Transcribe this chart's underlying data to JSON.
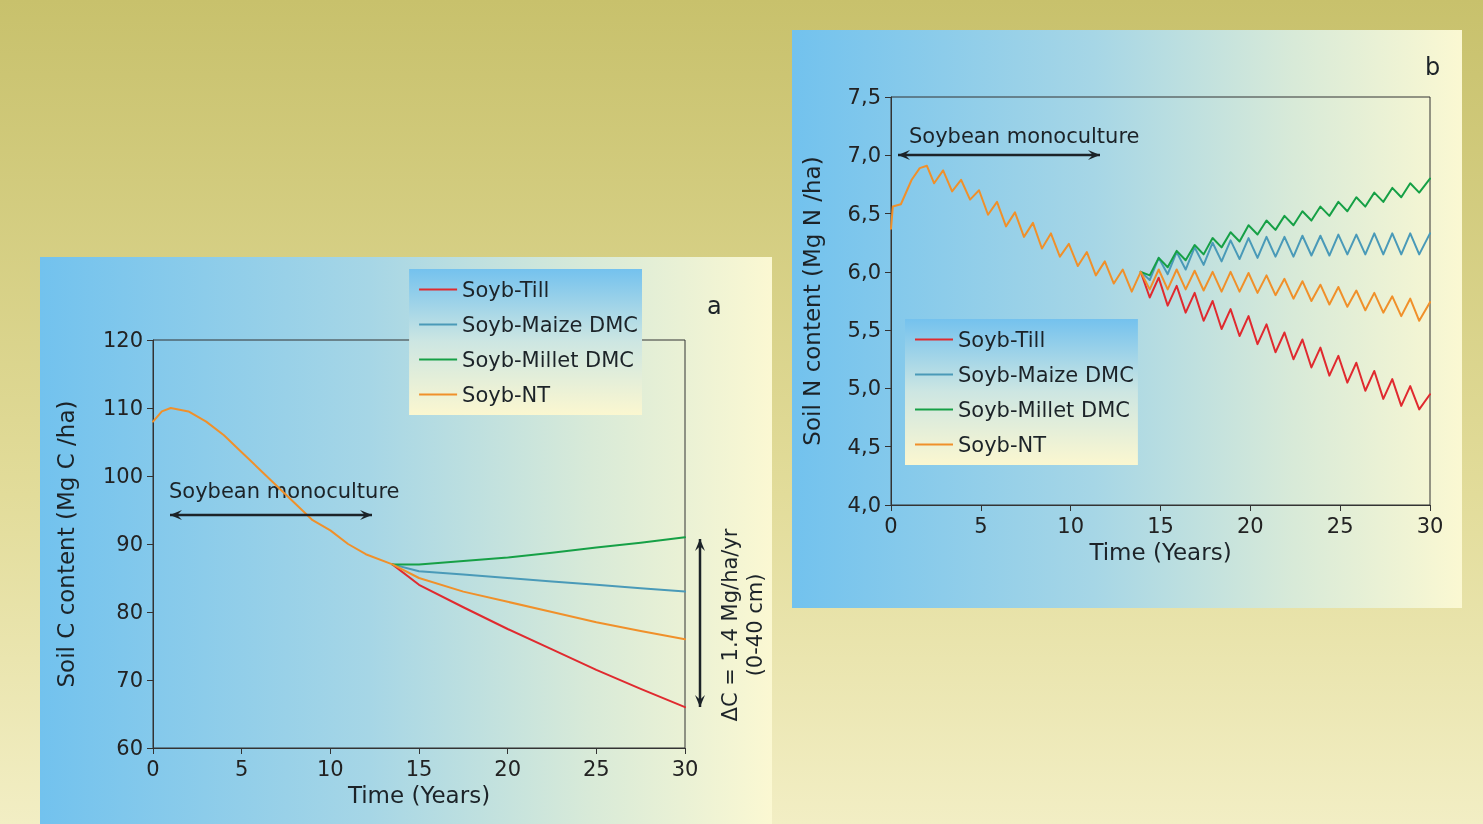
{
  "chart_data": [
    {
      "type": "line",
      "title": "a",
      "xlabel": "Time (Years)",
      "ylabel": "Soil C content (Mg C /ha)",
      "xlim": [
        0,
        30
      ],
      "xticks": [
        0,
        5,
        10,
        15,
        20,
        25,
        30
      ],
      "ylim": [
        60,
        120
      ],
      "yticks": [
        60,
        70,
        80,
        90,
        100,
        110,
        120
      ],
      "grid": false,
      "legend": "top right",
      "marker": "none",
      "line_style": "solid",
      "annotations": [
        "Soybean monoculture",
        "ΔC = 1.4 Mg/ha/yr",
        "(0-40 cm)"
      ],
      "series": [
        {
          "name": "Soyb-Till",
          "color": "#e02a2f",
          "x": [
            13.5,
            15,
            17.5,
            20,
            22.5,
            25,
            27.5,
            30
          ],
          "values": [
            87,
            84,
            80.7,
            77.5,
            74.5,
            71.5,
            68.7,
            66
          ]
        },
        {
          "name": "Soyb-Maize DMC",
          "color": "#4a9ab8",
          "x": [
            13.5,
            15,
            17.5,
            20,
            22.5,
            25,
            27.5,
            30
          ],
          "values": [
            87,
            86,
            85.5,
            85,
            84.5,
            84,
            83.5,
            83
          ]
        },
        {
          "name": "Soyb-Millet DMC",
          "color": "#16a046",
          "x": [
            13.5,
            15,
            17.5,
            20,
            22.5,
            25,
            27.5,
            30
          ],
          "values": [
            87,
            87,
            87.5,
            88,
            88.7,
            89.5,
            90.2,
            91
          ]
        },
        {
          "name": "Soyb-NT",
          "color": "#f0902a",
          "x": [
            0,
            0.5,
            1,
            2,
            3,
            4,
            5,
            6,
            7,
            8,
            9,
            10,
            11,
            12,
            13.5,
            15,
            17.5,
            20,
            22.5,
            25,
            27.5,
            30
          ],
          "values": [
            108,
            109.5,
            110,
            109.5,
            108,
            106,
            103.5,
            101,
            98.5,
            96,
            93.5,
            92,
            90,
            88.5,
            87,
            85,
            83,
            81.5,
            80,
            78.5,
            77.2,
            76
          ]
        }
      ]
    },
    {
      "type": "line",
      "title": "b",
      "xlabel": "Time (Years)",
      "ylabel": "Soil N content (Mg N /ha)",
      "xlim": [
        0,
        30
      ],
      "xticks": [
        0,
        5,
        10,
        15,
        20,
        25,
        30
      ],
      "ylim": [
        4.0,
        7.5
      ],
      "yticks": [
        {
          "value": 4.0,
          "label": "4,0"
        },
        {
          "value": 4.5,
          "label": "4,5"
        },
        {
          "value": 5.0,
          "label": "5,0"
        },
        {
          "value": 5.5,
          "label": "5,5"
        },
        {
          "value": 6.0,
          "label": "6,0"
        },
        {
          "value": 6.5,
          "label": "6,5"
        },
        {
          "value": 7.0,
          "label": "7,0"
        },
        {
          "value": 7.5,
          "label": "7,5"
        }
      ],
      "grid": false,
      "legend": "bottom left",
      "marker": "none",
      "line_style": "solid",
      "annotations": [
        "Soybean monoculture"
      ],
      "series": [
        {
          "name": "Soyb-Till",
          "color": "#e02a2f",
          "x": [
            13.9,
            14.4,
            14.9,
            15.4,
            15.9,
            16.4,
            16.9,
            17.4,
            17.9,
            18.4,
            18.9,
            19.4,
            19.9,
            20.4,
            20.9,
            21.4,
            21.9,
            22.4,
            22.9,
            23.4,
            23.9,
            24.4,
            24.9,
            25.4,
            25.9,
            26.4,
            26.9,
            27.4,
            27.9,
            28.4,
            28.9,
            29.4,
            30
          ],
          "values": [
            6.0,
            5.78,
            5.95,
            5.71,
            5.88,
            5.65,
            5.82,
            5.58,
            5.75,
            5.51,
            5.68,
            5.45,
            5.62,
            5.38,
            5.55,
            5.31,
            5.48,
            5.25,
            5.42,
            5.18,
            5.35,
            5.11,
            5.28,
            5.05,
            5.22,
            4.98,
            5.15,
            4.91,
            5.08,
            4.85,
            5.02,
            4.82,
            4.95
          ]
        },
        {
          "name": "Soyb-Maize DMC",
          "color": "#4a9ab8",
          "x": [
            13.9,
            14.4,
            14.9,
            15.4,
            15.9,
            16.4,
            16.9,
            17.4,
            17.9,
            18.4,
            18.9,
            19.4,
            19.9,
            20.4,
            20.9,
            21.4,
            21.9,
            22.4,
            22.9,
            23.4,
            23.9,
            24.4,
            24.9,
            25.4,
            25.9,
            26.4,
            26.9,
            27.4,
            27.9,
            28.4,
            28.9,
            29.4,
            30
          ],
          "values": [
            6.0,
            5.93,
            6.12,
            5.98,
            6.17,
            6.02,
            6.21,
            6.06,
            6.25,
            6.09,
            6.27,
            6.11,
            6.29,
            6.12,
            6.3,
            6.13,
            6.3,
            6.13,
            6.31,
            6.14,
            6.31,
            6.14,
            6.32,
            6.15,
            6.32,
            6.15,
            6.33,
            6.15,
            6.33,
            6.15,
            6.33,
            6.15,
            6.33
          ]
        },
        {
          "name": "Soyb-Millet DMC",
          "color": "#16a046",
          "x": [
            13.9,
            14.4,
            14.9,
            15.4,
            15.9,
            16.4,
            16.9,
            17.4,
            17.9,
            18.4,
            18.9,
            19.4,
            19.9,
            20.4,
            20.9,
            21.4,
            21.9,
            22.4,
            22.9,
            23.4,
            23.9,
            24.4,
            24.9,
            25.4,
            25.9,
            26.4,
            26.9,
            27.4,
            27.9,
            28.4,
            28.9,
            29.4,
            30
          ],
          "values": [
            6.0,
            5.97,
            6.12,
            6.04,
            6.18,
            6.1,
            6.23,
            6.15,
            6.29,
            6.21,
            6.34,
            6.26,
            6.4,
            6.32,
            6.44,
            6.36,
            6.48,
            6.4,
            6.52,
            6.44,
            6.56,
            6.48,
            6.6,
            6.52,
            6.64,
            6.56,
            6.68,
            6.6,
            6.72,
            6.64,
            6.76,
            6.68,
            6.8
          ]
        },
        {
          "name": "Soyb-NT",
          "color": "#f0902a",
          "x": [
            0,
            0.1,
            0.55,
            1.15,
            1.6,
            2.0,
            2.4,
            2.9,
            3.4,
            3.9,
            4.4,
            4.9,
            5.4,
            5.9,
            6.4,
            6.9,
            7.4,
            7.9,
            8.4,
            8.9,
            9.4,
            9.9,
            10.4,
            10.9,
            11.4,
            11.9,
            12.4,
            12.9,
            13.4,
            13.9,
            14.4,
            14.9,
            15.4,
            15.9,
            16.4,
            16.9,
            17.4,
            17.9,
            18.4,
            18.9,
            19.4,
            19.9,
            20.4,
            20.9,
            21.4,
            21.9,
            22.4,
            22.9,
            23.4,
            23.9,
            24.4,
            24.9,
            25.4,
            25.9,
            26.4,
            26.9,
            27.4,
            27.9,
            28.4,
            28.9,
            29.4,
            30
          ],
          "values": [
            6.37,
            6.56,
            6.58,
            6.79,
            6.89,
            6.91,
            6.76,
            6.87,
            6.69,
            6.79,
            6.62,
            6.7,
            6.49,
            6.6,
            6.39,
            6.51,
            6.3,
            6.42,
            6.2,
            6.33,
            6.13,
            6.24,
            6.05,
            6.17,
            5.97,
            6.09,
            5.9,
            6.02,
            5.83,
            6.0,
            5.85,
            6.02,
            5.85,
            6.02,
            5.85,
            6.01,
            5.84,
            6.0,
            5.83,
            6.0,
            5.83,
            5.99,
            5.82,
            5.97,
            5.8,
            5.94,
            5.77,
            5.92,
            5.75,
            5.89,
            5.72,
            5.87,
            5.7,
            5.84,
            5.67,
            5.82,
            5.65,
            5.79,
            5.62,
            5.77,
            5.58,
            5.74
          ]
        }
      ]
    }
  ]
}
